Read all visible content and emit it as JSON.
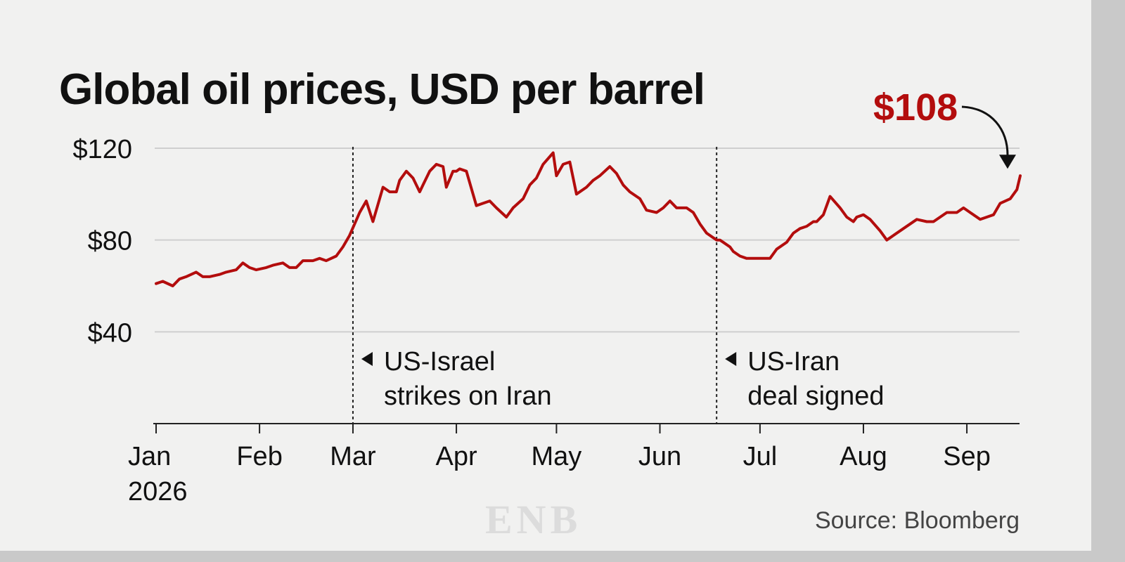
{
  "chart_data": {
    "type": "line",
    "title": "Global oil prices, USD per barrel",
    "source": "Source: Bloomberg",
    "x_start": "2026-01-01",
    "ylim": [
      0,
      120
    ],
    "y_ticks": [
      {
        "value": 120,
        "label": "$120"
      },
      {
        "value": 80,
        "label": "$80"
      },
      {
        "value": 40,
        "label": "$40"
      }
    ],
    "x_ticks": [
      {
        "day": 0,
        "label": "Jan",
        "sublabel": "2026"
      },
      {
        "day": 31,
        "label": "Feb"
      },
      {
        "day": 59,
        "label": "Mar"
      },
      {
        "day": 90,
        "label": "Apr"
      },
      {
        "day": 120,
        "label": "May"
      },
      {
        "day": 151,
        "label": "Jun"
      },
      {
        "day": 181,
        "label": "Jul"
      },
      {
        "day": 212,
        "label": "Aug"
      },
      {
        "day": 243,
        "label": "Sep"
      }
    ],
    "grid": "horizontal",
    "series": [
      {
        "color": "#b30d0d",
        "x": [
          0,
          2,
          5,
          7,
          9,
          12,
          14,
          16,
          19,
          21,
          24,
          26,
          28,
          30,
          33,
          35,
          38,
          40,
          42,
          44,
          47,
          49,
          51,
          54,
          56,
          58,
          61,
          63,
          65,
          67,
          68,
          70,
          72,
          73,
          75,
          77,
          79,
          80,
          82,
          84,
          86,
          87,
          89,
          90,
          91,
          93,
          96,
          98,
          100,
          102,
          105,
          107,
          110,
          112,
          114,
          116,
          119,
          120,
          122,
          124,
          126,
          129,
          131,
          133,
          136,
          138,
          140,
          142,
          145,
          147,
          150,
          152,
          154,
          156,
          159,
          161,
          163,
          165,
          168,
          169,
          170,
          172,
          173,
          175,
          177,
          179,
          182,
          184,
          186,
          189,
          191,
          193,
          195,
          197,
          198,
          200,
          202,
          205,
          207,
          209,
          210,
          212,
          214,
          217,
          219,
          221,
          224,
          226,
          228,
          231,
          233,
          235,
          237,
          240,
          242,
          244,
          247,
          249,
          251,
          253,
          256,
          258,
          259
        ],
        "y": [
          61,
          62,
          60,
          63,
          64,
          66,
          64,
          64,
          65,
          66,
          67,
          70,
          68,
          67,
          68,
          69,
          70,
          68,
          68,
          71,
          71,
          72,
          71,
          73,
          77,
          82,
          92,
          97,
          88,
          98,
          103,
          101,
          101,
          106,
          110,
          107,
          101,
          104,
          110,
          113,
          112,
          103,
          110,
          110,
          111,
          110,
          95,
          96,
          97,
          94,
          90,
          94,
          98,
          104,
          107,
          113,
          118,
          108,
          113,
          114,
          100,
          103,
          106,
          108,
          112,
          109,
          104,
          101,
          98,
          93,
          92,
          94,
          97,
          94,
          94,
          92,
          87,
          83,
          80,
          80,
          79,
          77,
          75,
          73,
          72,
          72,
          72,
          72,
          76,
          79,
          83,
          85,
          86,
          88,
          88,
          91,
          99,
          94,
          90,
          88,
          90,
          91,
          89,
          84,
          80,
          82,
          85,
          87,
          89,
          88,
          88,
          90,
          92,
          92,
          94,
          92,
          89,
          90,
          91,
          96,
          98,
          102,
          108
        ]
      }
    ],
    "current_value": {
      "label": "$108",
      "value": 108
    },
    "annotations": [
      {
        "day": 59,
        "line1": "US-Israel",
        "line2": "strikes on Iran"
      },
      {
        "day": 168,
        "line1": "US-Iran",
        "line2": "deal signed"
      }
    ]
  }
}
